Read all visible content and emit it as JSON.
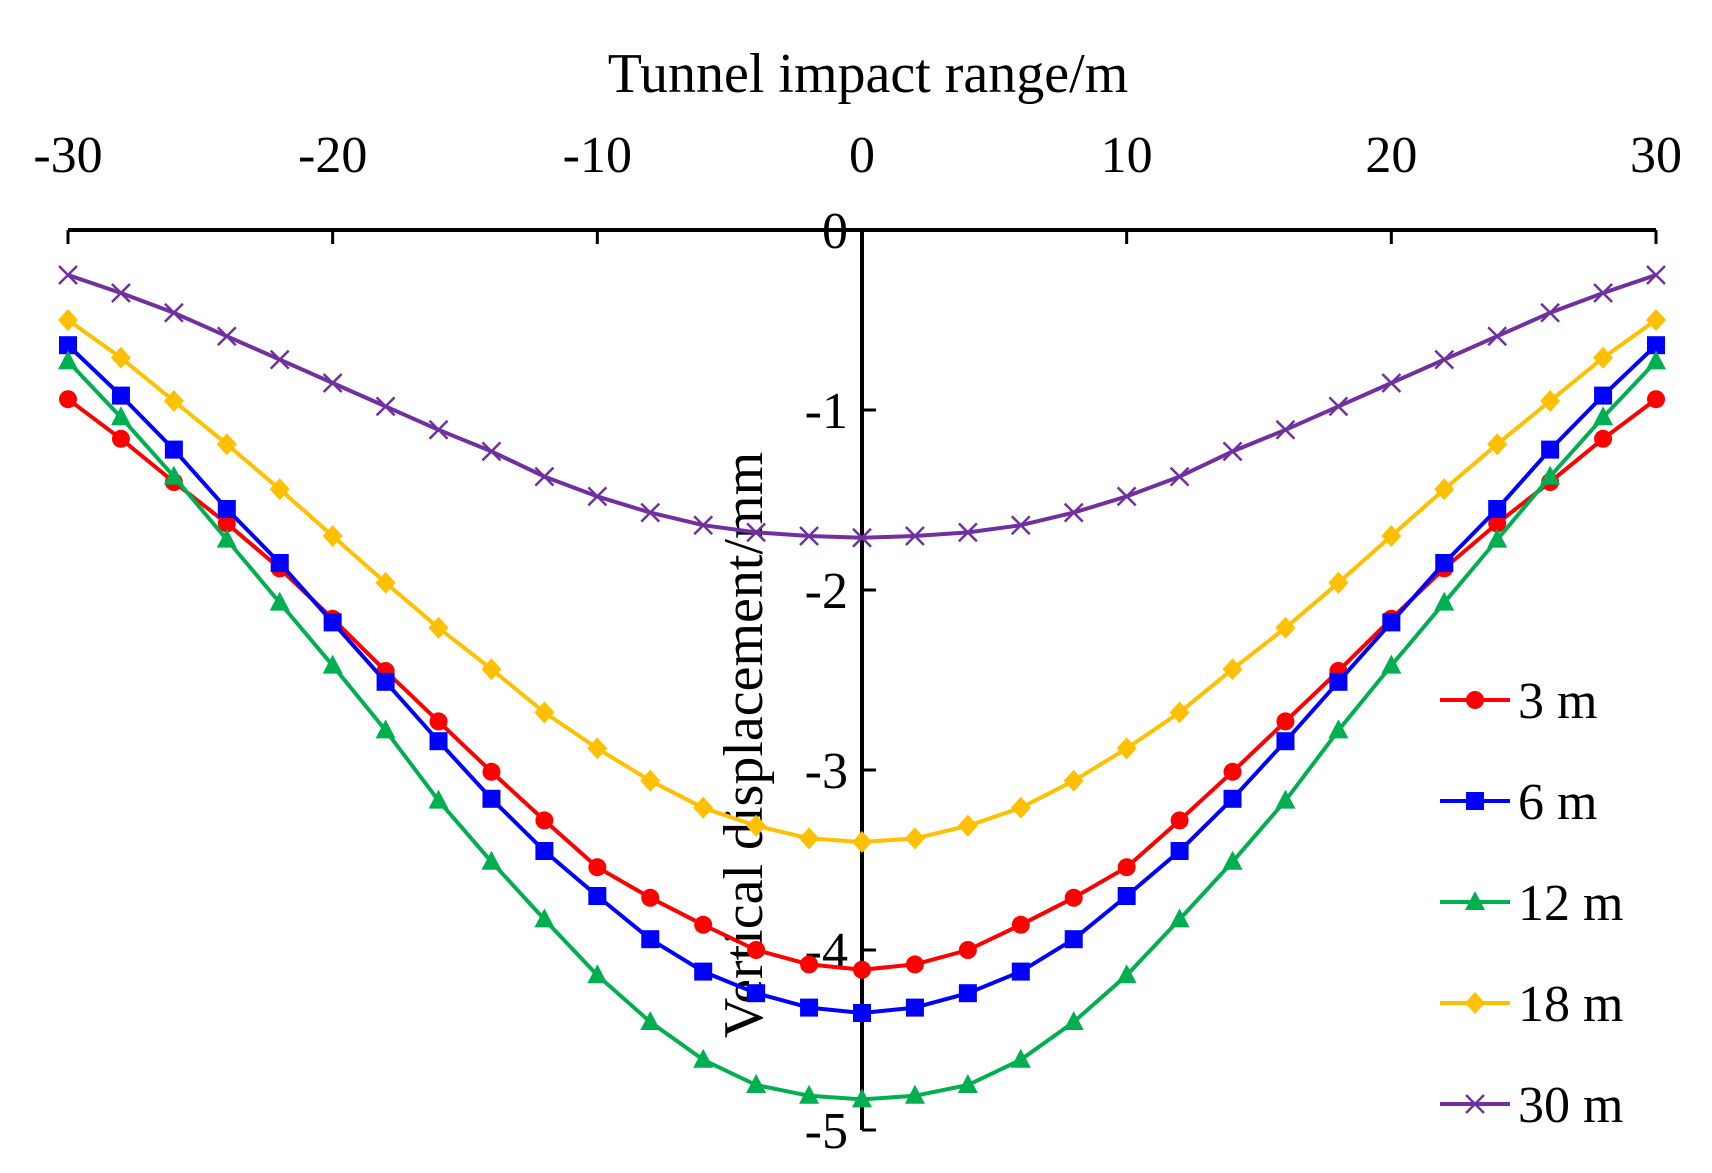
{
  "chart_data": {
    "type": "line",
    "title": "",
    "xlabel": "Tunnel impact range/m",
    "ylabel": "Vertical displacement/mm",
    "xlim": [
      -30,
      30
    ],
    "ylim": [
      -5,
      0
    ],
    "xticks": [
      -30,
      -20,
      -10,
      0,
      10,
      20,
      30
    ],
    "xtick_labels": [
      "-30",
      "-20",
      "-10",
      "0",
      "10",
      "20",
      "30"
    ],
    "yticks": [
      0,
      -1,
      -2,
      -3,
      -4,
      -5
    ],
    "ytick_labels": [
      "0",
      "-1",
      "-2",
      "-3",
      "-4",
      "-5"
    ],
    "x_axis_position": "top",
    "y_axis_position": "center (x = 0)",
    "grid": false,
    "legend_position": "right",
    "x": [
      -30,
      -28,
      -26,
      -24,
      -22,
      -20,
      -18,
      -16,
      -14,
      -12,
      -10,
      -8,
      -6,
      -4,
      -2,
      0,
      2,
      4,
      6,
      8,
      10,
      12,
      14,
      16,
      18,
      20,
      22,
      24,
      26,
      28,
      30
    ],
    "series": [
      {
        "name": "3 m",
        "color": "#ff0000",
        "marker": "circle",
        "values": [
          -0.94,
          -1.16,
          -1.4,
          -1.63,
          -1.88,
          -2.16,
          -2.45,
          -2.73,
          -3.01,
          -3.28,
          -3.54,
          -3.71,
          -3.86,
          -4.0,
          -4.08,
          -4.11,
          -4.08,
          -4.0,
          -3.86,
          -3.71,
          -3.54,
          -3.28,
          -3.01,
          -2.73,
          -2.45,
          -2.16,
          -1.88,
          -1.63,
          -1.4,
          -1.16,
          -0.94
        ]
      },
      {
        "name": "6 m",
        "color": "#0000ff",
        "marker": "square",
        "values": [
          -0.64,
          -0.92,
          -1.22,
          -1.55,
          -1.85,
          -2.18,
          -2.51,
          -2.84,
          -3.16,
          -3.45,
          -3.7,
          -3.94,
          -4.12,
          -4.24,
          -4.32,
          -4.35,
          -4.32,
          -4.24,
          -4.12,
          -3.94,
          -3.7,
          -3.45,
          -3.16,
          -2.84,
          -2.51,
          -2.18,
          -1.85,
          -1.55,
          -1.22,
          -0.92,
          -0.64
        ]
      },
      {
        "name": "12 m",
        "color": "#00b050",
        "marker": "triangle",
        "values": [
          -0.73,
          -1.04,
          -1.37,
          -1.72,
          -2.07,
          -2.42,
          -2.78,
          -3.17,
          -3.51,
          -3.83,
          -4.14,
          -4.4,
          -4.61,
          -4.75,
          -4.81,
          -4.83,
          -4.81,
          -4.75,
          -4.61,
          -4.4,
          -4.14,
          -3.83,
          -3.51,
          -3.17,
          -2.78,
          -2.42,
          -2.07,
          -1.72,
          -1.37,
          -1.04,
          -0.73
        ]
      },
      {
        "name": "18 m",
        "color": "#ffc000",
        "marker": "diamond",
        "values": [
          -0.5,
          -0.71,
          -0.95,
          -1.19,
          -1.44,
          -1.7,
          -1.96,
          -2.21,
          -2.44,
          -2.68,
          -2.88,
          -3.06,
          -3.21,
          -3.31,
          -3.38,
          -3.4,
          -3.38,
          -3.31,
          -3.21,
          -3.06,
          -2.88,
          -2.68,
          -2.44,
          -2.21,
          -1.96,
          -1.7,
          -1.44,
          -1.19,
          -0.95,
          -0.71,
          -0.5
        ]
      },
      {
        "name": "30 m",
        "color": "#7030a0",
        "marker": "x",
        "values": [
          -0.25,
          -0.35,
          -0.46,
          -0.59,
          -0.72,
          -0.85,
          -0.98,
          -1.11,
          -1.23,
          -1.37,
          -1.48,
          -1.57,
          -1.64,
          -1.68,
          -1.7,
          -1.71,
          -1.7,
          -1.68,
          -1.64,
          -1.57,
          -1.48,
          -1.37,
          -1.23,
          -1.11,
          -0.98,
          -0.85,
          -0.72,
          -0.59,
          -0.46,
          -0.35,
          -0.25
        ]
      }
    ]
  }
}
